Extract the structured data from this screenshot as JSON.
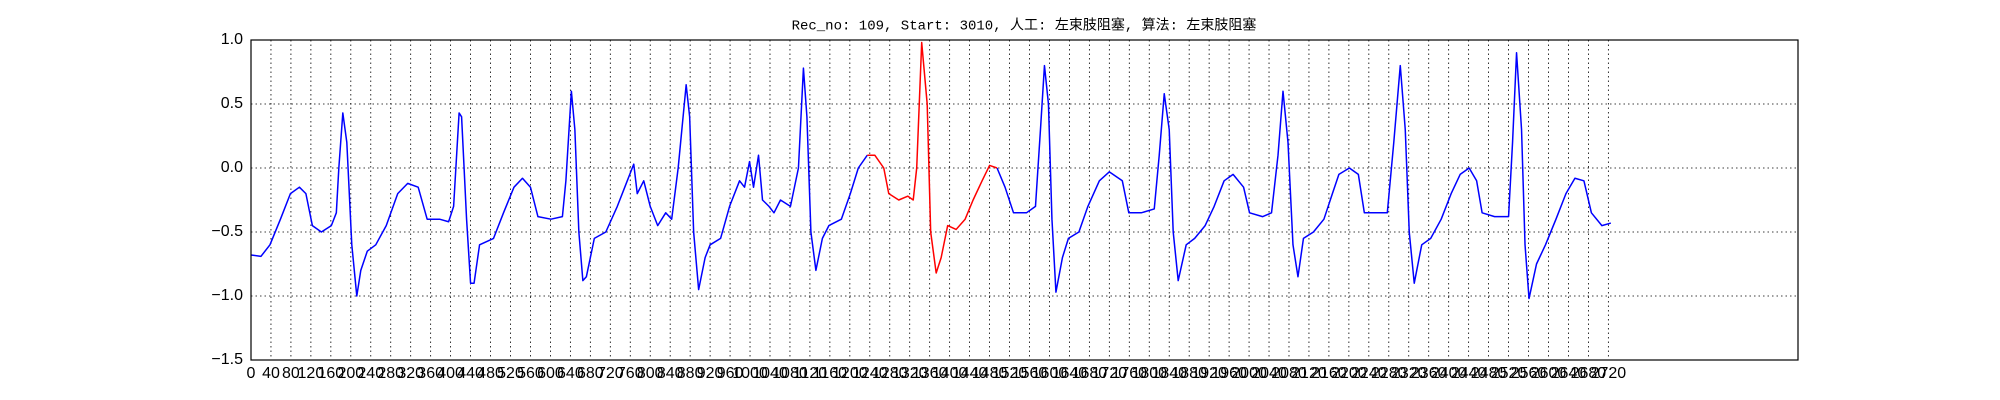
{
  "chart_data": {
    "type": "line",
    "title": "Rec_no: 109, Start: 3010, 人工: 左束肢阻塞, 算法: 左束肢阻塞",
    "xlim": [
      0,
      3100
    ],
    "ylim": [
      -1.5,
      1
    ],
    "xticks": [
      0,
      40,
      80,
      120,
      160,
      200,
      240,
      280,
      320,
      360,
      400,
      440,
      480,
      520,
      560,
      600,
      640,
      680,
      720,
      760,
      800,
      840,
      880,
      920,
      960,
      1000,
      1040,
      1080,
      1120,
      1160,
      1200,
      1240,
      1280,
      1320,
      1360,
      1400,
      1440,
      1480,
      1520,
      1560,
      1600,
      1640,
      1680,
      1720,
      1760,
      1800,
      1840,
      1880,
      1920,
      1960,
      2000,
      2040,
      2080,
      2120,
      2160,
      2200,
      2240,
      2280,
      2320,
      2360,
      2400,
      2440,
      2480,
      2520,
      2560,
      2600,
      2640,
      2680,
      2720
    ],
    "yticks": [
      {
        "value": 1,
        "label": "1.0"
      },
      0.5,
      {
        "value": 0,
        "label": "0.0"
      },
      {
        "value": -0.5,
        "label": "−0.5"
      },
      {
        "value": -1,
        "label": "−1.0"
      },
      {
        "value": -1.5,
        "label": "−1.5"
      }
    ],
    "grid": true,
    "series": [
      {
        "color": "#0000ff",
        "x": [
          0,
          20,
          38,
          59,
          79,
          97,
          110,
          123,
          141,
          161,
          171,
          176,
          184,
          192,
          202,
          212,
          220,
          233,
          250,
          271,
          294,
          314,
          335,
          353,
          378,
          396,
          406,
          417,
          422,
          432,
          440,
          447,
          458,
          486,
          506,
          527,
          544,
          560,
          575,
          601,
          624,
          631,
          642,
          649,
          657,
          665,
          672,
          688,
          711,
          734,
          749,
          767,
          774,
          787,
          800,
          815,
          831,
          843,
          856,
          872,
          879,
          887,
          897,
          910,
          920,
          941,
          959,
          979,
          989,
          999,
          1007,
          1017,
          1025,
          1038,
          1048,
          1061,
          1081,
          1097,
          1107,
          1114,
          1122,
          1132,
          1145,
          1158,
          1183,
          1201,
          1217,
          1235,
          1344,
          1495,
          1511,
          1528,
          1554,
          1572,
          1582,
          1590,
          1598,
          1605,
          1613,
          1626,
          1638,
          1659,
          1677,
          1700,
          1720,
          1746,
          1759,
          1784,
          1810,
          1820,
          1830,
          1840,
          1848,
          1858,
          1874,
          1891,
          1912,
          1930,
          1950,
          1968,
          1989,
          2001,
          2027,
          2045,
          2058,
          2068,
          2078,
          2088,
          2098,
          2109,
          2129,
          2150,
          2167,
          2180,
          2201,
          2219,
          2231,
          2257,
          2277,
          2290,
          2303,
          2313,
          2321,
          2331,
          2346,
          2364,
          2385,
          2405,
          2423,
          2441,
          2456,
          2467,
          2492,
          2520,
          2528,
          2536,
          2546,
          2553,
          2561,
          2576,
          2594,
          2615,
          2635,
          2653,
          2671,
          2686,
          2707,
          2725
        ],
        "values": [
          -0.68,
          -0.69,
          -0.6,
          -0.4,
          -0.2,
          -0.15,
          -0.2,
          -0.45,
          -0.5,
          -0.45,
          -0.35,
          0.0,
          0.43,
          0.2,
          -0.6,
          -1.0,
          -0.8,
          -0.65,
          -0.6,
          -0.45,
          -0.2,
          -0.12,
          -0.15,
          -0.4,
          -0.4,
          -0.42,
          -0.3,
          0.43,
          0.4,
          -0.4,
          -0.9,
          -0.9,
          -0.6,
          -0.55,
          -0.35,
          -0.15,
          -0.08,
          -0.15,
          -0.38,
          -0.4,
          -0.38,
          -0.1,
          0.6,
          0.3,
          -0.5,
          -0.88,
          -0.85,
          -0.55,
          -0.5,
          -0.3,
          -0.15,
          0.03,
          -0.2,
          -0.1,
          -0.3,
          -0.45,
          -0.35,
          -0.4,
          0.0,
          0.65,
          0.4,
          -0.5,
          -0.95,
          -0.7,
          -0.6,
          -0.55,
          -0.3,
          -0.1,
          -0.15,
          0.05,
          -0.15,
          0.1,
          -0.25,
          -0.3,
          -0.35,
          -0.25,
          -0.3,
          0.0,
          0.78,
          0.4,
          -0.5,
          -0.8,
          -0.55,
          -0.45,
          -0.4,
          -0.2,
          0.0,
          0.1,
          null,
          0.0,
          -0.15,
          -0.35,
          -0.35,
          -0.3,
          0.3,
          0.8,
          0.5,
          -0.4,
          -0.97,
          -0.7,
          -0.55,
          -0.5,
          -0.3,
          -0.1,
          -0.03,
          -0.1,
          -0.35,
          -0.35,
          -0.32,
          0.1,
          0.58,
          0.3,
          -0.5,
          -0.88,
          -0.6,
          -0.55,
          -0.45,
          -0.3,
          -0.1,
          -0.05,
          -0.15,
          -0.35,
          -0.38,
          -0.35,
          0.1,
          0.6,
          0.2,
          -0.6,
          -0.85,
          -0.55,
          -0.5,
          -0.4,
          -0.2,
          -0.05,
          0.0,
          -0.05,
          -0.35,
          -0.35,
          -0.35,
          0.2,
          0.8,
          0.3,
          -0.5,
          -0.9,
          -0.6,
          -0.55,
          -0.4,
          -0.2,
          -0.05,
          0.0,
          -0.1,
          -0.35,
          -0.38,
          -0.38,
          0.2,
          0.9,
          0.3,
          -0.6,
          -1.02,
          -0.75,
          -0.6,
          -0.4,
          -0.2,
          -0.08,
          -0.1,
          -0.35,
          -0.45,
          -0.43
        ]
      },
      {
        "color": "#ff0000",
        "x": [
          1235,
          1250,
          1268,
          1278,
          1298,
          1316,
          1327,
          1334,
          1344,
          1355,
          1362,
          1373,
          1383,
          1396,
          1413,
          1431,
          1447,
          1465,
          1480,
          1495
        ],
        "values": [
          0.1,
          0.1,
          0.0,
          -0.2,
          -0.25,
          -0.22,
          -0.25,
          0.0,
          0.98,
          0.5,
          -0.5,
          -0.82,
          -0.7,
          -0.45,
          -0.48,
          -0.4,
          -0.25,
          -0.1,
          0.02,
          0.0
        ]
      }
    ]
  }
}
